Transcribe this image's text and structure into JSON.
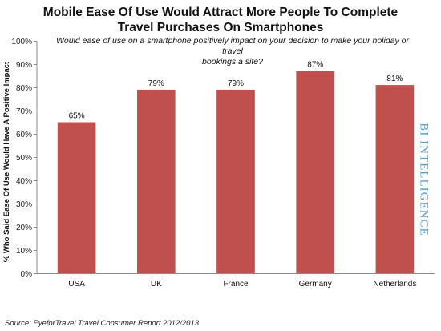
{
  "chart_data": {
    "type": "bar",
    "title_lines": [
      "Mobile Ease Of Use Would Attract More People To Complete",
      "Travel Purchases On Smartphones"
    ],
    "subtitle_lines": [
      "Would ease of use on a smartphone positively impact on your decision to make your holiday or travel",
      "bookings a site?"
    ],
    "xlabel": "",
    "ylabel": "% Who Said Ease Of Use Would Have A Positive Impact",
    "categories": [
      "USA",
      "UK",
      "France",
      "Germany",
      "Netherlands"
    ],
    "values": [
      65,
      79,
      79,
      87,
      81
    ],
    "value_labels": [
      "65%",
      "79%",
      "79%",
      "87%",
      "81%"
    ],
    "y_ticks": [
      0,
      10,
      20,
      30,
      40,
      50,
      60,
      70,
      80,
      90,
      100
    ],
    "y_tick_labels": [
      "0%",
      "10%",
      "20%",
      "30%",
      "40%",
      "50%",
      "60%",
      "70%",
      "80%",
      "90%",
      "100%"
    ],
    "ylim": [
      0,
      100
    ],
    "grid": false,
    "legend": "none",
    "bar_color": "#c0504d"
  },
  "source": "Source: EyeforTravel Travel Consumer Report 2012/2013",
  "watermark": "BI INTELLIGENCE"
}
